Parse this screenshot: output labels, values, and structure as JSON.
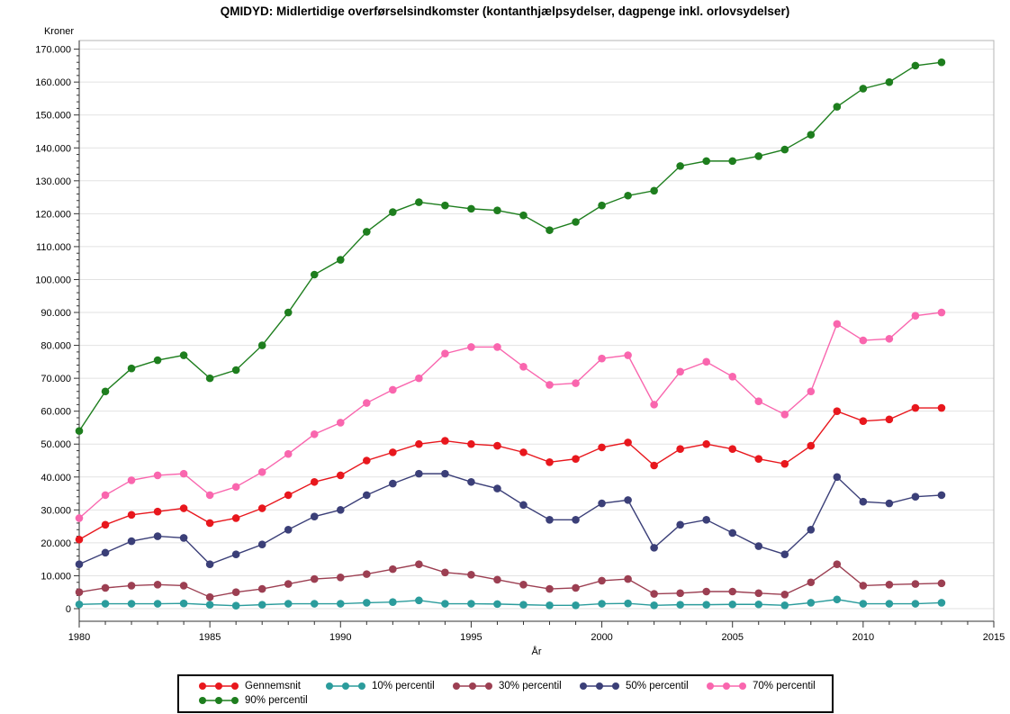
{
  "title": "QMIDYD: Midlertidige overførselsindkomster (kontanthjælpsydelser, dagpenge inkl. orlovsydelser)",
  "chart_data": {
    "type": "line",
    "title": "QMIDYD: Midlertidige overførselsindkomster (kontanthjælpsydelser, dagpenge inkl. orlovsydelser)",
    "xlabel": "År",
    "ylabel": "Kroner",
    "xlim": [
      1980,
      2015
    ],
    "ylim": [
      0,
      170000
    ],
    "xticks": [
      1980,
      1985,
      1990,
      1995,
      2000,
      2005,
      2010,
      2015
    ],
    "ytick_step": 10000,
    "y_minor_step": 2000,
    "x_minor_step": 1,
    "grid": "horizontal",
    "legend_position": "bottom",
    "x": [
      1980,
      1981,
      1982,
      1983,
      1984,
      1985,
      1986,
      1987,
      1988,
      1989,
      1990,
      1991,
      1992,
      1993,
      1994,
      1995,
      1996,
      1997,
      1998,
      1999,
      2000,
      2001,
      2002,
      2003,
      2004,
      2005,
      2006,
      2007,
      2008,
      2009,
      2010,
      2011,
      2012,
      2013
    ],
    "series": [
      {
        "name": "Gennemsnit",
        "color": "#e8171d",
        "values": [
          21000,
          25500,
          28500,
          29500,
          30500,
          26000,
          27500,
          30500,
          34500,
          38500,
          40500,
          45000,
          47500,
          50000,
          51000,
          50000,
          49500,
          47500,
          44500,
          45500,
          49000,
          50500,
          43500,
          48500,
          50000,
          48500,
          45500,
          44000,
          49500,
          60000,
          57000,
          57500,
          61000,
          61000
        ]
      },
      {
        "name": "10% percentil",
        "color": "#2b9c9c",
        "values": [
          1300,
          1500,
          1500,
          1500,
          1600,
          1200,
          900,
          1200,
          1500,
          1500,
          1500,
          1800,
          2000,
          2500,
          1500,
          1500,
          1400,
          1200,
          1000,
          1000,
          1500,
          1600,
          1000,
          1200,
          1200,
          1300,
          1300,
          1000,
          1800,
          2800,
          1500,
          1500,
          1500,
          1800
        ]
      },
      {
        "name": "30% percentil",
        "color": "#9c3f52",
        "values": [
          5000,
          6300,
          7000,
          7300,
          7000,
          3500,
          5000,
          6000,
          7500,
          9000,
          9500,
          10500,
          12000,
          13500,
          11000,
          10300,
          8800,
          7300,
          6000,
          6300,
          8500,
          9000,
          4500,
          4700,
          5200,
          5200,
          4700,
          4300,
          8000,
          13500,
          7000,
          7300,
          7500,
          7700
        ]
      },
      {
        "name": "50% percentil",
        "color": "#3b3f78",
        "values": [
          13500,
          17000,
          20500,
          22000,
          21500,
          13500,
          16500,
          19500,
          24000,
          28000,
          30000,
          34500,
          38000,
          41000,
          41000,
          38500,
          36500,
          31500,
          27000,
          27000,
          32000,
          33000,
          18500,
          25500,
          27000,
          23000,
          19000,
          16500,
          24000,
          40000,
          32500,
          32000,
          34000,
          34500
        ]
      },
      {
        "name": "70% percentil",
        "color": "#f966ae",
        "values": [
          27500,
          34500,
          39000,
          40500,
          41000,
          34500,
          37000,
          41500,
          47000,
          53000,
          56500,
          62500,
          66500,
          70000,
          77500,
          79500,
          79500,
          73500,
          68000,
          68500,
          76000,
          77000,
          62000,
          72000,
          75000,
          70500,
          63000,
          59000,
          66000,
          86500,
          81500,
          82000,
          89000,
          90000
        ]
      },
      {
        "name": "90% percentil",
        "color": "#1e7e1e",
        "values": [
          54000,
          66000,
          73000,
          75500,
          77000,
          70000,
          72500,
          80000,
          90000,
          101500,
          106000,
          114500,
          120500,
          123500,
          122500,
          121500,
          121000,
          119500,
          115000,
          117500,
          122500,
          125500,
          127000,
          134500,
          136000,
          136000,
          137500,
          139500,
          144000,
          152500,
          158000,
          160000,
          165000,
          166000
        ]
      }
    ]
  }
}
